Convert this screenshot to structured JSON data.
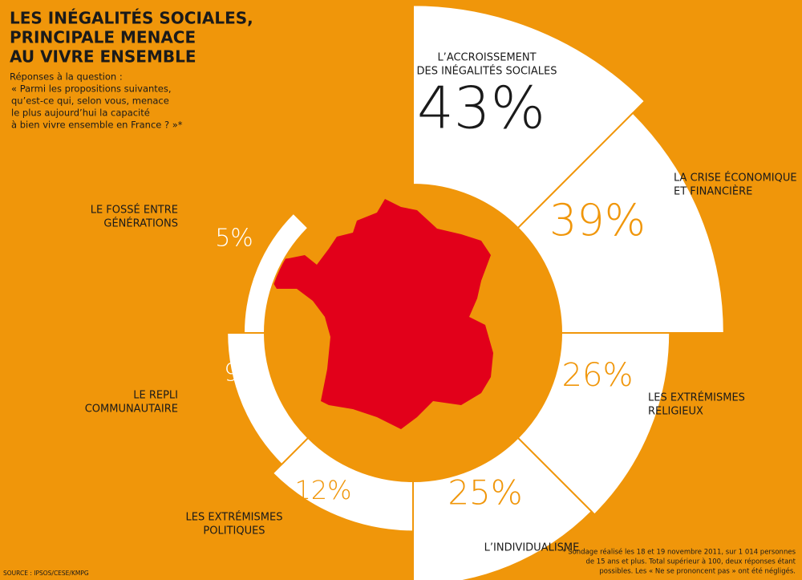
{
  "chart_data": {
    "type": "radial-bar",
    "title": [
      "LES INÉGALITÉS SOCIALES,",
      "PRINCIPALE MENACE",
      "AU VIVRE ENSEMBLE"
    ],
    "subtitle": [
      "Réponses à la question :",
      "« Parmi les propositions suivantes,",
      "qu’est-ce qui, selon vous, menace",
      "le plus aujourd’hui la capacité",
      "à bien vivre ensemble en France ? »*"
    ],
    "categories": [
      [
        "L’ACCROISSEMENT",
        "DES INÉGALITÉS SOCIALES"
      ],
      [
        "LA CRISE ÉCONOMIQUE",
        "ET FINANCIÈRE"
      ],
      [
        "LES EXTRÉMISMES",
        "RELIGIEUX"
      ],
      [
        "L’INDIVIDUALISME"
      ],
      [
        "LES EXTRÉMISMES",
        "POLITIQUES"
      ],
      [
        "LE REPLI",
        "COMMUNAUTAIRE"
      ],
      [
        "LE FOSSÉ ENTRE",
        "GÉNÉRATIONS"
      ]
    ],
    "values": [
      43,
      39,
      26,
      25,
      12,
      9,
      5
    ],
    "value_labels": [
      "43%",
      "39%",
      "26%",
      "25%",
      "12%",
      "9%",
      "5%"
    ],
    "footnote": [
      "* Sondage réalisé les 18 et 19 novembre 2011, sur 1 014 personnes",
      "de 15 ans et plus. Total supérieur à 100, deux réponses étant",
      "possibles. Les « Ne se prononcent pas » ont été négligés."
    ],
    "source": "SOURCE : IPSOS/CESE/KMPG"
  }
}
